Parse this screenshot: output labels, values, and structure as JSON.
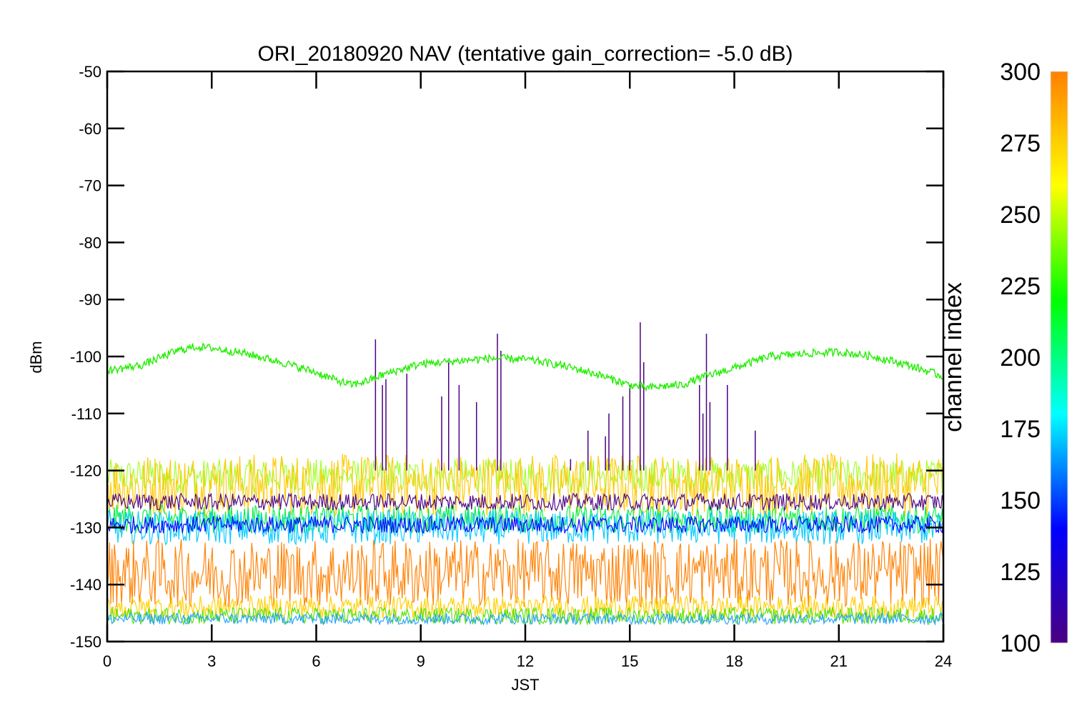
{
  "chart_data": {
    "type": "line",
    "title": "ORI_20180920 NAV (tentative gain_correction= -5.0 dB)",
    "xlabel": "JST",
    "ylabel": "dBm",
    "xlim": [
      0,
      24
    ],
    "ylim": [
      -150,
      -50
    ],
    "x_ticks": [
      "0",
      "3",
      "6",
      "9",
      "12",
      "15",
      "18",
      "21",
      "24"
    ],
    "y_ticks": [
      "-50",
      "-60",
      "-70",
      "-80",
      "-90",
      "-100",
      "-110",
      "-120",
      "-130",
      "-140",
      "-150"
    ],
    "colorbar": {
      "label": "channel index",
      "range": [
        100,
        300
      ],
      "ticks": [
        "300",
        "275",
        "250",
        "225",
        "200",
        "175",
        "150",
        "125",
        "100"
      ],
      "colormap": [
        "#4b0082",
        "#0000ff",
        "#00ffff",
        "#00ff00",
        "#ffff00",
        "#ff8000"
      ]
    },
    "series": [
      {
        "color": "#22ee00",
        "x": [
          0,
          1,
          2,
          2.5,
          3,
          4,
          5,
          6,
          6.5,
          7,
          7.5,
          8,
          9,
          10,
          11,
          12,
          13,
          14,
          15,
          15.5,
          16,
          16.5,
          17,
          18,
          19,
          20,
          21,
          22,
          23,
          24
        ],
        "y": [
          -102.5,
          -101.5,
          -99,
          -98.3,
          -98.5,
          -99.5,
          -101,
          -102.8,
          -104,
          -105,
          -104.2,
          -103,
          -101.3,
          -100.8,
          -100.3,
          -100.5,
          -101.5,
          -103,
          -105,
          -105.5,
          -105.2,
          -105,
          -103.8,
          -102,
          -100,
          -99.5,
          -99.2,
          -100,
          -101.5,
          -103.5
        ]
      },
      {
        "color": "#a0ff20",
        "band": [
          -124,
          -118
        ]
      },
      {
        "color": "#ffc800",
        "band": [
          -128,
          -117
        ]
      },
      {
        "color": "#00ee40",
        "band": [
          -131,
          -126
        ]
      },
      {
        "color": "#00c8ff",
        "band": [
          -133,
          -127
        ]
      },
      {
        "color": "#0000ff",
        "band": [
          -131,
          -128
        ]
      },
      {
        "color": "#4b0082",
        "band": [
          -127,
          -124
        ]
      },
      {
        "color": "#ff8000",
        "band": [
          -144,
          -132
        ]
      },
      {
        "color": "#ffd000",
        "band": [
          -146,
          -142
        ]
      },
      {
        "color": "#50e000",
        "band": [
          -147,
          -144
        ]
      },
      {
        "color": "#20a0ff",
        "band": [
          -147,
          -145
        ]
      }
    ],
    "spikes": [
      {
        "color": "#4b0082",
        "x": [
          7.7,
          7.9,
          8.0,
          8.6,
          9.6,
          9.8,
          10.1,
          10.6,
          11.2,
          11.3,
          13.3,
          13.8,
          14.3,
          14.4,
          14.8,
          15.0,
          15.3,
          15.4,
          17.0,
          17.1,
          17.2,
          17.3,
          17.8,
          18.6
        ],
        "peak": [
          -97,
          -105,
          -104,
          -103,
          -107,
          -101,
          -105,
          -108,
          -96,
          -99,
          -118,
          -113,
          -114,
          -110,
          -107,
          -105,
          -94,
          -101,
          -105,
          -110,
          -96,
          -108,
          -105,
          -113
        ]
      }
    ]
  }
}
